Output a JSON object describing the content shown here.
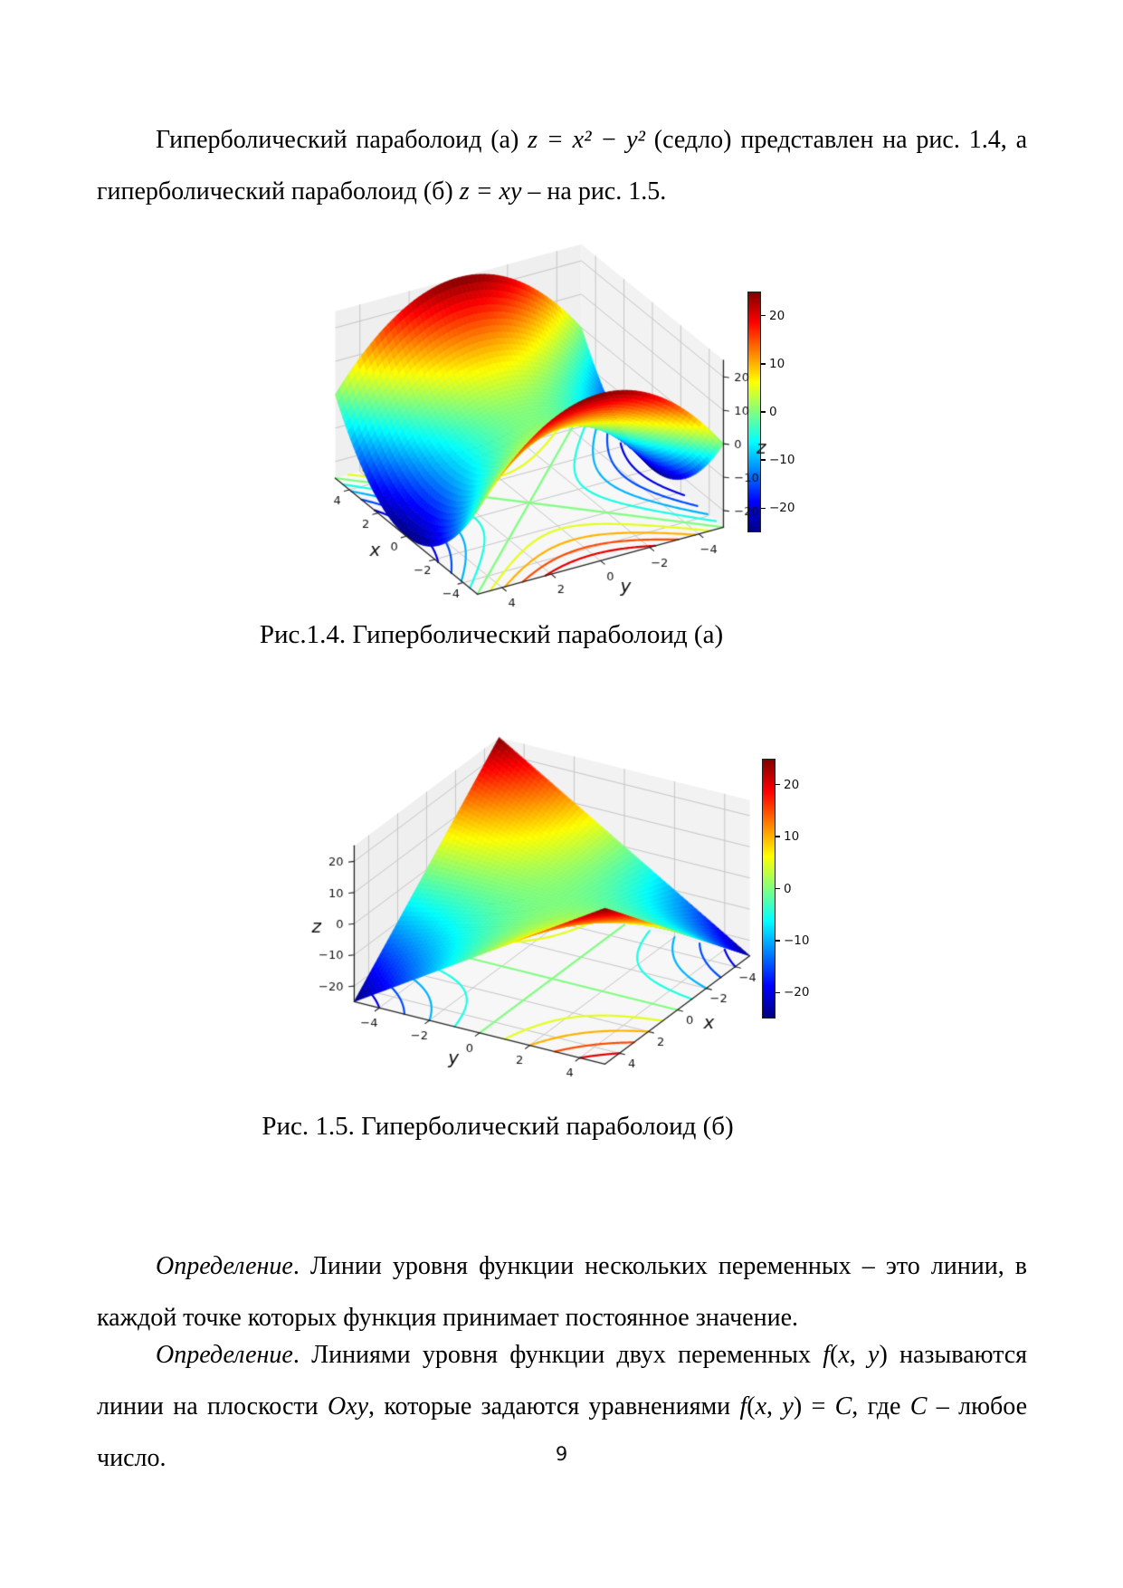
{
  "page": {
    "number": "9"
  },
  "intro": {
    "segments": [
      {
        "t": "Гиперболический параболоид (а) ",
        "i": false
      },
      {
        "t": "z = x² − y²",
        "i": true
      },
      {
        "t": " (седло) представлен на рис. 1.4, а гиперболический параболоид (б) ",
        "i": false
      },
      {
        "t": "z = xy",
        "i": true
      },
      {
        "t": " – на рис. 1.5.",
        "i": false
      }
    ]
  },
  "definitions": {
    "def1": {
      "segments": [
        {
          "t": "Определение",
          "i": true
        },
        {
          "t": ". Линии уровня функции нескольких переменных – это линии, в каждой точке которых функция принимает постоянное значение.",
          "i": false
        }
      ]
    },
    "def2": {
      "segments": [
        {
          "t": "Определение",
          "i": true
        },
        {
          "t": ". Линиями уровня функции двух переменных ",
          "i": false
        },
        {
          "t": "f",
          "i": true
        },
        {
          "t": "(",
          "i": false
        },
        {
          "t": "x",
          "i": true
        },
        {
          "t": ", ",
          "i": false
        },
        {
          "t": "y",
          "i": true
        },
        {
          "t": ") называются линии на плоскости ",
          "i": false
        },
        {
          "t": "Oxy",
          "i": true
        },
        {
          "t": ", которые задаются уравнениями ",
          "i": false
        },
        {
          "t": "f",
          "i": true
        },
        {
          "t": "(",
          "i": false
        },
        {
          "t": "x",
          "i": true
        },
        {
          "t": ", ",
          "i": false
        },
        {
          "t": "y",
          "i": true
        },
        {
          "t": ") = ",
          "i": false
        },
        {
          "t": "C",
          "i": true
        },
        {
          "t": ", где ",
          "i": false
        },
        {
          "t": "C",
          "i": true
        },
        {
          "t": " – любое число.",
          "i": false
        }
      ]
    }
  },
  "figures": [
    {
      "caption": "Рис.1.4. Гиперболический параболоид (а)"
    },
    {
      "caption": "Рис. 1.5. Гиперболический параболоид (б)"
    }
  ],
  "chart_data": [
    {
      "type": "surface",
      "title": "",
      "equation": "z = x² − y²",
      "fn_id": "saddle",
      "x_range": [
        -5,
        5
      ],
      "y_range": [
        -5,
        5
      ],
      "z_range": [
        -25,
        25
      ],
      "x_ticks": [
        -4,
        -2,
        0,
        2,
        4
      ],
      "y_ticks": [
        -4,
        -2,
        0,
        2,
        4
      ],
      "z_ticks": [
        -20,
        -10,
        0,
        10,
        20
      ],
      "xlabel": "x",
      "ylabel": "y",
      "zlabel": "z",
      "grid": true,
      "colormap": "jet",
      "colormap_stops": [
        "#800000",
        "#ff0000",
        "#ff8000",
        "#ffff00",
        "#80ff80",
        "#00ffff",
        "#0080ff",
        "#0000ff",
        "#000080"
      ],
      "colorbar_ticks": [
        20,
        10,
        0,
        -10,
        -20
      ],
      "contour_levels": [
        -20,
        -15,
        -10,
        -5,
        0,
        5,
        10,
        15,
        20
      ],
      "layout": {
        "azim": 60,
        "elev": 30,
        "zh": 0.72,
        "scale": [
          157,
          148
        ],
        "center": [
          270,
          238
        ],
        "x_map": {
          "edge": "V",
          "k": -0.2
        },
        "y_map": {
          "edge": "U",
          "k": 0.2
        },
        "z_side": "right"
      }
    },
    {
      "type": "surface",
      "title": "",
      "equation": "z = xy",
      "fn_id": "xy",
      "x_range": [
        -5,
        5
      ],
      "y_range": [
        -5,
        5
      ],
      "z_range": [
        -25,
        25
      ],
      "x_ticks": [
        -4,
        -2,
        0,
        2,
        4
      ],
      "y_ticks": [
        -4,
        -2,
        0,
        2,
        4
      ],
      "z_ticks": [
        -20,
        -10,
        0,
        10,
        20
      ],
      "xlabel": "x",
      "ylabel": "y",
      "zlabel": "z",
      "grid": true,
      "colormap": "jet",
      "colormap_stops": [
        "#800000",
        "#ff0000",
        "#ff8000",
        "#ffff00",
        "#80ff80",
        "#00ffff",
        "#0080ff",
        "#0000ff",
        "#000080"
      ],
      "colorbar_ticks": [
        20,
        10,
        0,
        -10,
        -20
      ],
      "contour_levels": [
        -20,
        -15,
        -10,
        -5,
        0,
        5,
        10,
        15,
        20
      ],
      "layout": {
        "azim": 30,
        "elev": 30,
        "zh": 0.72,
        "scale": [
          160,
          138
        ],
        "center": [
          330,
          225
        ],
        "x_map": {
          "edge": "U",
          "k": 0.2
        },
        "y_map": {
          "edge": "V",
          "k": 0.2
        },
        "z_side": "left"
      }
    }
  ]
}
